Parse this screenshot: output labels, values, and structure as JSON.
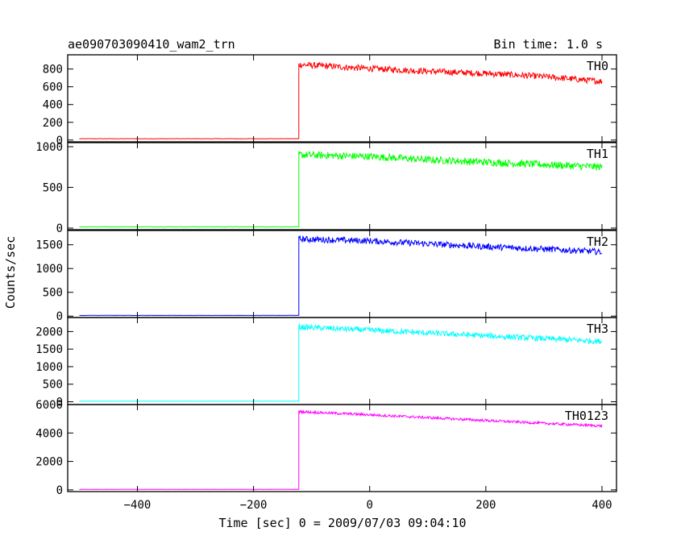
{
  "chart_data": {
    "type": "line",
    "title_left": "ae090703090410_wam2_trn",
    "title_right": "Bin time: 1.0 s",
    "xlabel": "Time [sec] 0 = 2009/07/03 09:04:10",
    "ylabel": "Counts/sec",
    "xlim": [
      -520,
      425
    ],
    "x_ticks": [
      -400,
      -200,
      0,
      200,
      400
    ],
    "x_tick_labels": [
      "−400",
      "−200",
      "0",
      "200",
      "400"
    ],
    "bin_time_s": 1.0,
    "rise_time": -122,
    "t_start": -500,
    "t_end": 400,
    "grid": false,
    "panels": [
      {
        "name": "TH0",
        "color": "#ff0000",
        "ylim": [
          -20,
          960
        ],
        "y_ticks": [
          0,
          200,
          400,
          600,
          800
        ],
        "y_tick_labels": [
          "0",
          "200",
          "400",
          "600",
          "800"
        ],
        "background_level": 15,
        "profile": [
          {
            "t": -122,
            "v": 850
          },
          {
            "t": 0,
            "v": 805
          },
          {
            "t": 100,
            "v": 775
          },
          {
            "t": 200,
            "v": 750
          },
          {
            "t": 300,
            "v": 715
          },
          {
            "t": 400,
            "v": 660
          }
        ],
        "noise": 35
      },
      {
        "name": "TH1",
        "color": "#00ff00",
        "ylim": [
          -20,
          1050
        ],
        "y_ticks": [
          0,
          500,
          1000
        ],
        "y_tick_labels": [
          "0",
          "500",
          "1000"
        ],
        "background_level": 15,
        "profile": [
          {
            "t": -122,
            "v": 900
          },
          {
            "t": 0,
            "v": 880
          },
          {
            "t": 100,
            "v": 840
          },
          {
            "t": 200,
            "v": 810
          },
          {
            "t": 300,
            "v": 780
          },
          {
            "t": 400,
            "v": 750
          }
        ],
        "noise": 45
      },
      {
        "name": "TH2",
        "color": "#0000ff",
        "ylim": [
          -30,
          1800
        ],
        "y_ticks": [
          0,
          500,
          1000,
          1500
        ],
        "y_tick_labels": [
          "0",
          "500",
          "1000",
          "1500"
        ],
        "background_level": 15,
        "profile": [
          {
            "t": -122,
            "v": 1620
          },
          {
            "t": 0,
            "v": 1580
          },
          {
            "t": 100,
            "v": 1520
          },
          {
            "t": 200,
            "v": 1460
          },
          {
            "t": 300,
            "v": 1410
          },
          {
            "t": 400,
            "v": 1350
          }
        ],
        "noise": 65
      },
      {
        "name": "TH3",
        "color": "#00ffff",
        "ylim": [
          -80,
          2400
        ],
        "y_ticks": [
          0,
          500,
          1000,
          1500,
          2000
        ],
        "y_tick_labels": [
          "0",
          "500",
          "1000",
          "1500",
          "2000"
        ],
        "background_level": 15,
        "profile": [
          {
            "t": -122,
            "v": 2130
          },
          {
            "t": 0,
            "v": 2040
          },
          {
            "t": 100,
            "v": 1960
          },
          {
            "t": 200,
            "v": 1880
          },
          {
            "t": 300,
            "v": 1800
          },
          {
            "t": 400,
            "v": 1720
          }
        ],
        "noise": 80
      },
      {
        "name": "TH0123",
        "color": "#ff00ff",
        "ylim": [
          -120,
          6000
        ],
        "y_ticks": [
          0,
          2000,
          4000,
          6000
        ],
        "y_tick_labels": [
          "0",
          "2000",
          "4000",
          "6000"
        ],
        "background_level": 40,
        "profile": [
          {
            "t": -122,
            "v": 5500
          },
          {
            "t": 0,
            "v": 5280
          },
          {
            "t": 100,
            "v": 5080
          },
          {
            "t": 200,
            "v": 4880
          },
          {
            "t": 300,
            "v": 4680
          },
          {
            "t": 400,
            "v": 4500
          }
        ],
        "noise": 90
      }
    ]
  }
}
